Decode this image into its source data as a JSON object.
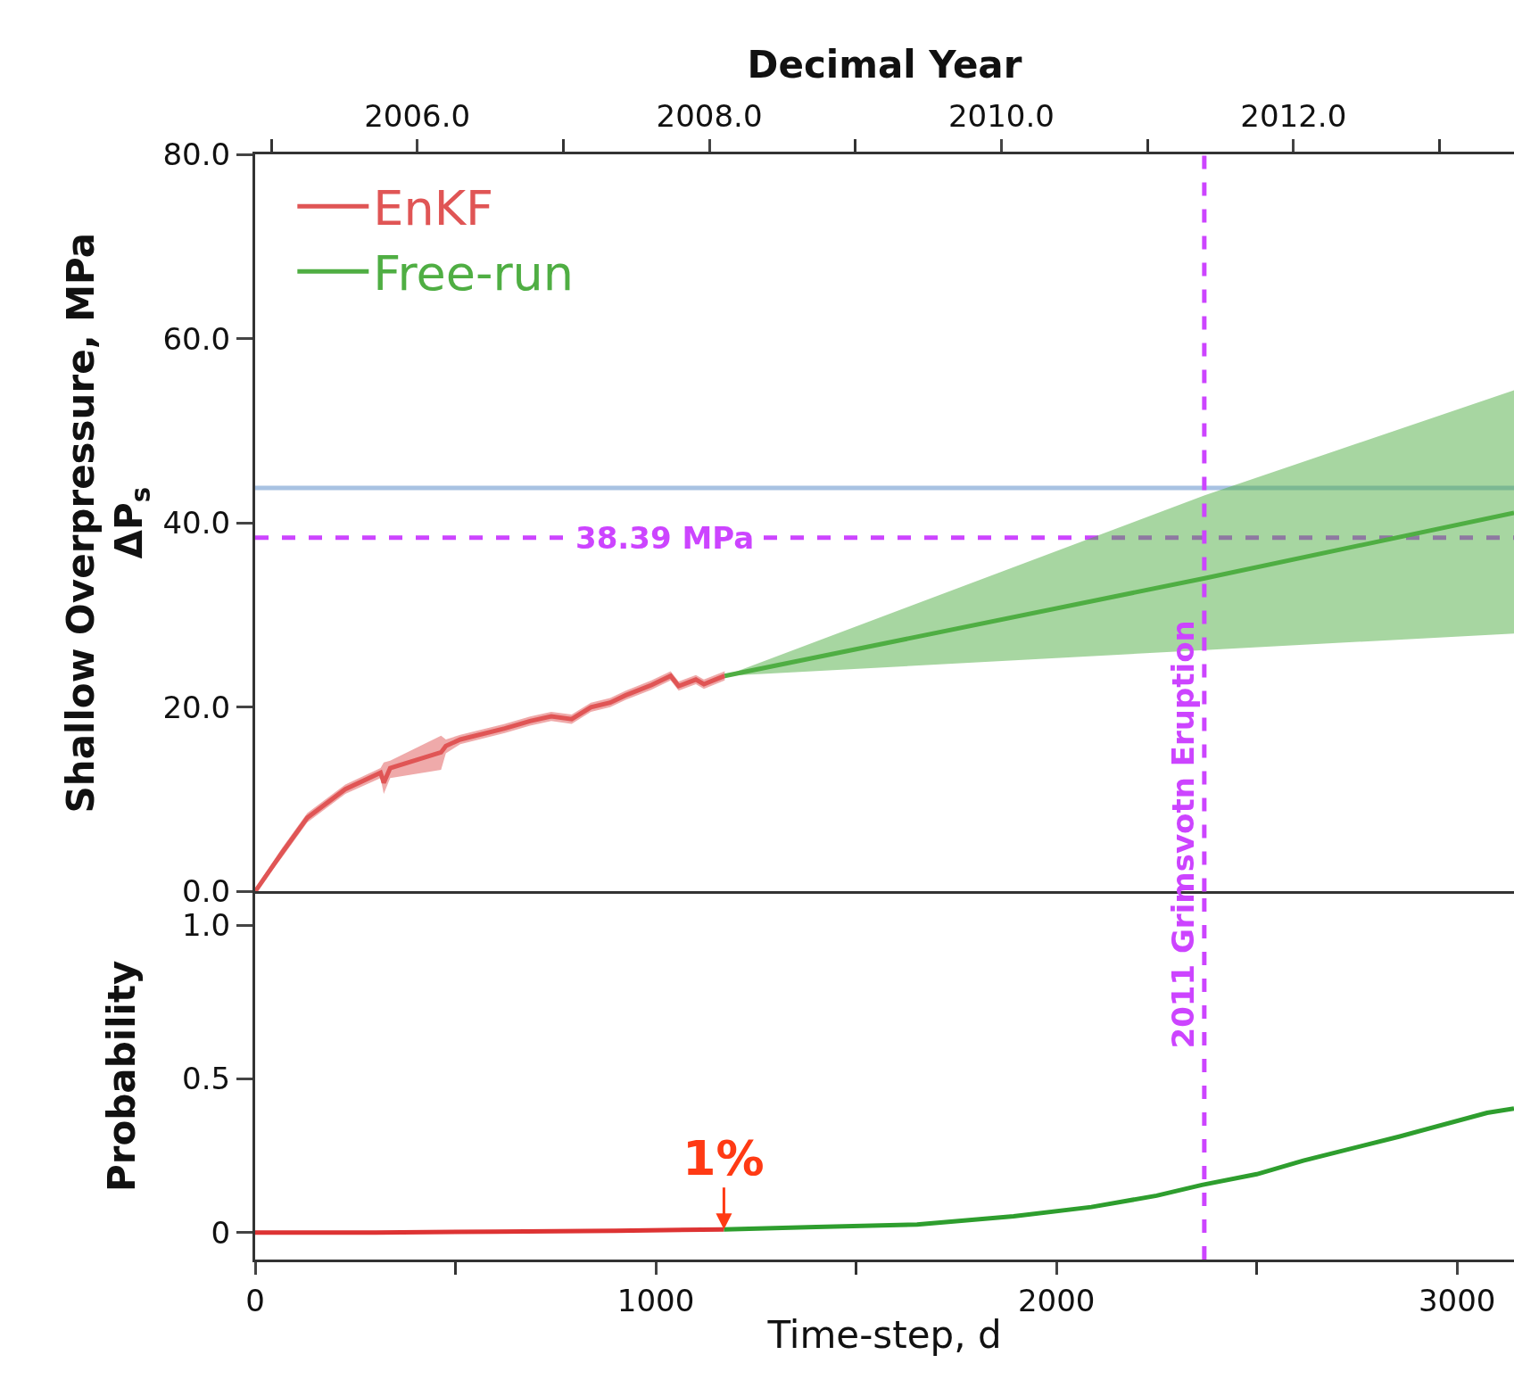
{
  "chart_data": [
    {
      "type": "line",
      "xlabel": null,
      "ylabel": "Shallow Overpressure, MPa\nΔP$_{s}$",
      "x2label": "Decimal Year",
      "xlim": [
        0,
        3142
      ],
      "x2lim": [
        2004.89,
        2013.51
      ],
      "x2ticks": [
        {
          "value": 2005,
          "label": null
        },
        {
          "value": 2006,
          "label": "2006.0"
        },
        {
          "value": 2007,
          "label": null
        },
        {
          "value": 2008,
          "label": "2008.0"
        },
        {
          "value": 2009,
          "label": null
        },
        {
          "value": 2010,
          "label": "2010.0"
        },
        {
          "value": 2011,
          "label": null
        },
        {
          "value": 2012,
          "label": "2012.0"
        },
        {
          "value": 2013,
          "label": null
        }
      ],
      "ylim": [
        0,
        80
      ],
      "yticks": [
        {
          "value": 0,
          "label": "0.0"
        },
        {
          "value": 20,
          "label": "20.0"
        },
        {
          "value": 40,
          "label": "40.0"
        },
        {
          "value": 60,
          "label": "60.0"
        },
        {
          "value": 80,
          "label": "80.0"
        }
      ],
      "tick_labels": "y",
      "legend": "top left",
      "grid": false,
      "marker": "none",
      "line_style": "solid",
      "series": [
        {
          "name": "EnKF",
          "color": "#e05555",
          "x": [
            0,
            67,
            130,
            225,
            313,
            321,
            337,
            464,
            476,
            512,
            623,
            686,
            739,
            790,
            838,
            886,
            925,
            989,
            1037,
            1057,
            1100,
            1120,
            1172
          ],
          "values": [
            0,
            4.2,
            8.0,
            11.1,
            12.9,
            11.8,
            13.4,
            15.1,
            15.8,
            16.5,
            17.7,
            18.5,
            19.0,
            18.7,
            20.0,
            20.5,
            21.3,
            22.4,
            23.4,
            22.3,
            23.0,
            22.5,
            23.4
          ],
          "upper": [
            0.3,
            4.7,
            8.5,
            11.6,
            13.4,
            14.0,
            14.2,
            16.9,
            16.5,
            17.0,
            18.2,
            19.0,
            19.5,
            19.2,
            20.5,
            21.0,
            21.8,
            22.9,
            23.9,
            22.8,
            23.5,
            23.0,
            23.9
          ],
          "lower": [
            0,
            3.7,
            7.5,
            10.6,
            12.3,
            10.6,
            12.3,
            13.2,
            15.0,
            16.0,
            17.2,
            18.0,
            18.5,
            18.2,
            19.5,
            20.0,
            20.8,
            21.9,
            22.9,
            21.8,
            22.5,
            22.0,
            22.9
          ]
        },
        {
          "name": "Free-run",
          "color": "#4fae43",
          "x": [
            1172,
            2370,
            3142
          ],
          "values": [
            23.4,
            34.0,
            41.1
          ],
          "upper": [
            23.4,
            43.0,
            54.4
          ],
          "lower": [
            23.4,
            26.2,
            28.0
          ]
        }
      ],
      "ref_lines": [
        {
          "axis": "y",
          "value": 43.8,
          "color": "#a8c2e2",
          "line_style": "solid"
        },
        {
          "axis": "y",
          "value": 38.39,
          "label": "38.39 MPa",
          "color": "#cc44ff",
          "line_style": "dashed"
        },
        {
          "axis": "x",
          "value": 2369,
          "label": "2011 Grimsvotn Eruption",
          "color": "#cc44ff",
          "line_style": "dashed"
        }
      ]
    },
    {
      "type": "line",
      "xlabel": "Time-step, d",
      "ylabel": "Probability",
      "xlim": [
        0,
        3142
      ],
      "xticks": [
        0,
        {
          "value": 500,
          "label": null
        },
        1000,
        {
          "value": 1500,
          "label": null
        },
        2000,
        {
          "value": 2500,
          "label": null
        },
        3000
      ],
      "ylim": [
        -0.088,
        1.107
      ],
      "yticks": [
        0,
        0.5,
        {
          "value": 1.0,
          "label": "1.0"
        }
      ],
      "grid": false,
      "marker": "none",
      "line_style": "solid",
      "series": [
        {
          "color": "#dd3333",
          "x": [
            0,
            300,
            600,
            900,
            1170
          ],
          "values": [
            0,
            0,
            0.003,
            0.006,
            0.01
          ]
        },
        {
          "color": "#2e9e2e",
          "x": [
            1170,
            1400,
            1652,
            1893,
            2087,
            2250,
            2363,
            2500,
            2616,
            2857,
            3075,
            3142
          ],
          "values": [
            0.01,
            0.018,
            0.026,
            0.053,
            0.083,
            0.12,
            0.155,
            0.19,
            0.234,
            0.313,
            0.39,
            0.404
          ]
        }
      ],
      "ref_lines": [
        {
          "axis": "x",
          "value": 2369,
          "color": "#cc44ff",
          "line_style": "dashed"
        }
      ],
      "annotations": [
        {
          "text": "1%",
          "x": 1170,
          "y": 0.01
        }
      ]
    }
  ]
}
